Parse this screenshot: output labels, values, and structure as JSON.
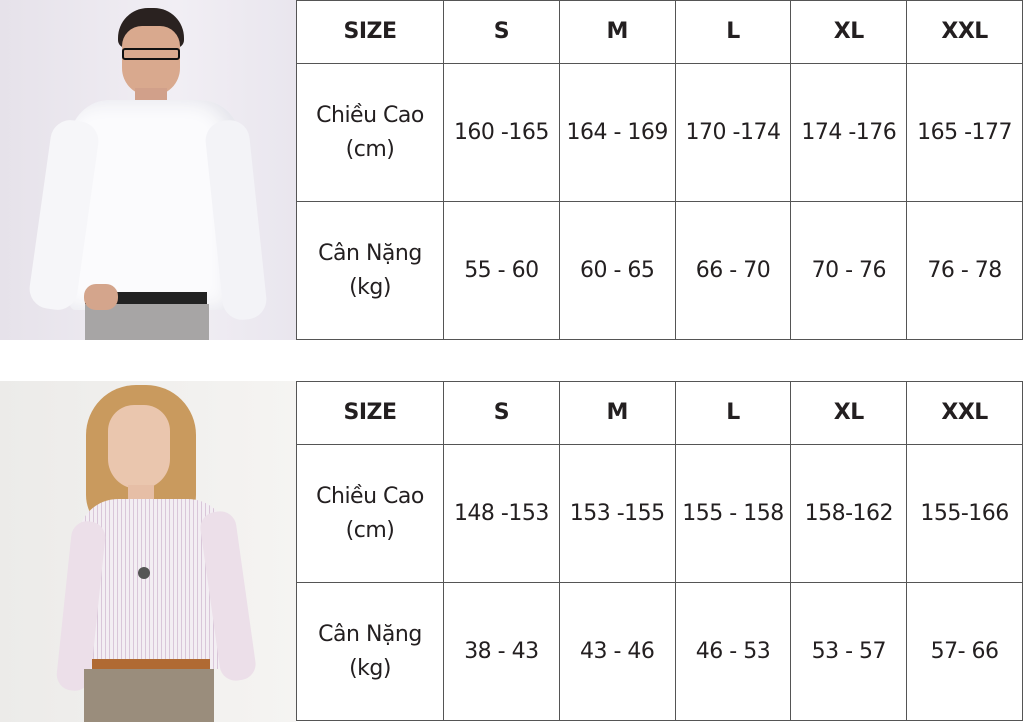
{
  "tables": [
    {
      "model": "man-white-shirt",
      "header": [
        "SIZE",
        "S",
        "M",
        "L",
        "XL",
        "XXL"
      ],
      "rows": [
        {
          "label_line1": "Chiều Cao",
          "label_line2": "(cm)",
          "values": [
            "160 -165",
            "164 - 169",
            "170 -174",
            "174 -176",
            "165 -177"
          ]
        },
        {
          "label_line1": "Cân Nặng",
          "label_line2": "(kg)",
          "values": [
            "55 - 60",
            "60 - 65",
            "66 - 70",
            "70 - 76",
            "76 - 78"
          ]
        }
      ]
    },
    {
      "model": "woman-striped-shirt",
      "header": [
        "SIZE",
        "S",
        "M",
        "L",
        "XL",
        "XXL"
      ],
      "rows": [
        {
          "label_line1": "Chiều Cao",
          "label_line2": "(cm)",
          "values": [
            "148 -153",
            "153 -155",
            "155 - 158",
            "158-162",
            "155-166"
          ]
        },
        {
          "label_line1": "Cân Nặng",
          "label_line2": "(kg)",
          "values": [
            "38 - 43",
            "43 - 46",
            "46 - 53",
            "53 - 57",
            "57- 66"
          ]
        }
      ]
    }
  ]
}
